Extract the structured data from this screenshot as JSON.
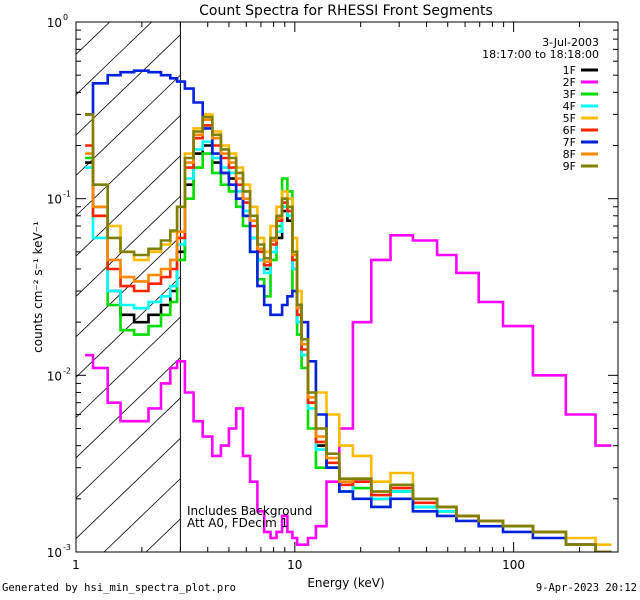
{
  "chart_data": {
    "type": "line",
    "title": "Count Spectra for RHESSI Front Segments",
    "xlabel": "Energy (keV)",
    "ylabel": "counts cm⁻² s⁻¹ keV⁻¹",
    "xscale": "log",
    "yscale": "log",
    "xlim": [
      1,
      300
    ],
    "ylim": [
      0.001,
      1
    ],
    "x_ticks": [
      {
        "value": 1,
        "label": "1"
      },
      {
        "value": 10,
        "label": "10"
      },
      {
        "value": 100,
        "label": "100"
      }
    ],
    "y_ticks": [
      {
        "value": 0.001,
        "base": "10",
        "exp": "-3"
      },
      {
        "value": 0.01,
        "base": "10",
        "exp": "-2"
      },
      {
        "value": 0.1,
        "base": "10",
        "exp": "-1"
      },
      {
        "value": 1,
        "base": "10",
        "exp": "0"
      }
    ],
    "date": "3-Jul-2003",
    "time_range": "18:17:00 to 18:18:00",
    "annotation_lines": [
      "Includes Background",
      "Att A0, FDecim 1"
    ],
    "hatched_region": {
      "x_from": 1,
      "x_to": 3
    },
    "series": [
      {
        "name": "1F",
        "color": "#000000",
        "x": [
          1.1,
          1.3,
          1.5,
          1.7,
          2.0,
          2.3,
          2.6,
          2.8,
          3.0,
          3.3,
          3.6,
          4.0,
          4.4,
          4.8,
          5.2,
          5.6,
          6.0,
          6.5,
          7.0,
          7.5,
          8.0,
          8.5,
          9.0,
          9.5,
          10.0,
          10.5,
          11,
          12,
          13,
          15,
          17,
          20,
          25,
          30,
          40,
          50,
          60,
          80,
          100,
          150,
          200,
          280
        ],
        "y": [
          0.16,
          0.09,
          0.03,
          0.022,
          0.02,
          0.022,
          0.025,
          0.03,
          0.05,
          0.12,
          0.18,
          0.2,
          0.16,
          0.14,
          0.13,
          0.1,
          0.08,
          0.06,
          0.045,
          0.04,
          0.05,
          0.06,
          0.085,
          0.075,
          0.04,
          0.02,
          0.013,
          0.007,
          0.004,
          0.003,
          0.0022,
          0.0025,
          0.002,
          0.0022,
          0.0018,
          0.0017,
          0.0016,
          0.0015,
          0.0014,
          0.0013,
          0.0011,
          0.001
        ]
      },
      {
        "name": "2F",
        "color": "#ff00ff",
        "x": [
          1.1,
          1.3,
          1.5,
          1.7,
          2.0,
          2.3,
          2.6,
          2.8,
          3.0,
          3.3,
          3.6,
          4.0,
          4.4,
          4.8,
          5.2,
          5.6,
          6.0,
          6.5,
          7.0,
          7.5,
          8.0,
          8.5,
          9.0,
          9.5,
          10.0,
          10.5,
          11,
          12,
          13,
          15,
          17,
          20,
          25,
          30,
          40,
          50,
          60,
          80,
          100,
          150,
          200,
          280
        ],
        "y": [
          0.013,
          0.011,
          0.007,
          0.0055,
          0.0055,
          0.0065,
          0.009,
          0.011,
          0.012,
          0.008,
          0.0055,
          0.0045,
          0.0035,
          0.004,
          0.005,
          0.0065,
          0.0035,
          0.0025,
          0.0017,
          0.0013,
          0.0012,
          0.0013,
          0.0016,
          0.0013,
          0.0012,
          0.0011,
          0.0011,
          0.0012,
          0.0014,
          0.0025,
          0.005,
          0.02,
          0.045,
          0.062,
          0.058,
          0.048,
          0.038,
          0.026,
          0.019,
          0.01,
          0.006,
          0.004
        ]
      },
      {
        "name": "3F",
        "color": "#00dd00",
        "x": [
          1.1,
          1.3,
          1.5,
          1.7,
          2.0,
          2.3,
          2.6,
          2.8,
          3.0,
          3.3,
          3.6,
          4.0,
          4.4,
          4.8,
          5.2,
          5.6,
          6.0,
          6.5,
          7.0,
          7.5,
          8.0,
          8.5,
          9.0,
          9.5,
          10.0,
          10.5,
          11,
          12,
          13,
          15,
          17,
          20,
          25,
          30,
          40,
          50,
          60,
          80,
          100,
          150,
          200,
          280
        ],
        "y": [
          0.17,
          0.08,
          0.025,
          0.018,
          0.017,
          0.019,
          0.022,
          0.026,
          0.045,
          0.1,
          0.15,
          0.18,
          0.14,
          0.12,
          0.11,
          0.09,
          0.07,
          0.05,
          0.035,
          0.028,
          0.045,
          0.07,
          0.13,
          0.11,
          0.03,
          0.017,
          0.011,
          0.005,
          0.003,
          0.003,
          0.0025,
          0.0023,
          0.002,
          0.0022,
          0.0018,
          0.0017,
          0.0016,
          0.0015,
          0.0014,
          0.0013,
          0.0011,
          0.001
        ]
      },
      {
        "name": "4F",
        "color": "#00ffff",
        "x": [
          1.1,
          1.3,
          1.5,
          1.7,
          2.0,
          2.3,
          2.6,
          2.8,
          3.0,
          3.3,
          3.6,
          4.0,
          4.4,
          4.8,
          5.2,
          5.6,
          6.0,
          6.5,
          7.0,
          7.5,
          8.0,
          8.5,
          9.0,
          9.5,
          10.0,
          10.5,
          11,
          12,
          13,
          15,
          17,
          20,
          25,
          30,
          40,
          50,
          60,
          80,
          100,
          150,
          200,
          280
        ],
        "y": [
          0.15,
          0.06,
          0.03,
          0.025,
          0.024,
          0.026,
          0.028,
          0.032,
          0.055,
          0.13,
          0.19,
          0.21,
          0.17,
          0.15,
          0.14,
          0.11,
          0.085,
          0.06,
          0.045,
          0.038,
          0.05,
          0.065,
          0.09,
          0.08,
          0.04,
          0.02,
          0.013,
          0.0065,
          0.0038,
          0.003,
          0.0022,
          0.0025,
          0.002,
          0.0022,
          0.0018,
          0.0017,
          0.0016,
          0.0015,
          0.0014,
          0.0013,
          0.0011,
          0.001
        ]
      },
      {
        "name": "5F",
        "color": "#ffbb00",
        "x": [
          1.1,
          1.3,
          1.5,
          1.7,
          2.0,
          2.3,
          2.6,
          2.8,
          3.0,
          3.3,
          3.6,
          4.0,
          4.4,
          4.8,
          5.2,
          5.6,
          6.0,
          6.5,
          7.0,
          7.5,
          8.0,
          8.5,
          9.0,
          9.5,
          10.0,
          10.5,
          11,
          12,
          13,
          15,
          17,
          20,
          25,
          30,
          40,
          50,
          60,
          80,
          100,
          150,
          200,
          280
        ],
        "y": [
          0.3,
          0.12,
          0.07,
          0.05,
          0.045,
          0.05,
          0.055,
          0.065,
          0.09,
          0.18,
          0.25,
          0.3,
          0.24,
          0.2,
          0.18,
          0.15,
          0.12,
          0.09,
          0.06,
          0.05,
          0.07,
          0.09,
          0.11,
          0.1,
          0.06,
          0.03,
          0.02,
          0.012,
          0.008,
          0.006,
          0.004,
          0.0035,
          0.0025,
          0.0028,
          0.002,
          0.0018,
          0.0016,
          0.0015,
          0.0014,
          0.0013,
          0.0012,
          0.0011
        ]
      },
      {
        "name": "6F",
        "color": "#ff2200",
        "x": [
          1.1,
          1.3,
          1.5,
          1.7,
          2.0,
          2.3,
          2.6,
          2.8,
          3.0,
          3.3,
          3.6,
          4.0,
          4.4,
          4.8,
          5.2,
          5.6,
          6.0,
          6.5,
          7.0,
          7.5,
          8.0,
          8.5,
          9.0,
          9.5,
          10.0,
          10.5,
          11,
          12,
          13,
          15,
          17,
          20,
          25,
          30,
          40,
          50,
          60,
          80,
          100,
          150,
          200,
          280
        ],
        "y": [
          0.2,
          0.08,
          0.04,
          0.032,
          0.03,
          0.033,
          0.036,
          0.04,
          0.06,
          0.15,
          0.22,
          0.26,
          0.2,
          0.17,
          0.15,
          0.12,
          0.095,
          0.07,
          0.05,
          0.042,
          0.055,
          0.075,
          0.095,
          0.085,
          0.045,
          0.022,
          0.014,
          0.007,
          0.0042,
          0.0032,
          0.0024,
          0.0025,
          0.0021,
          0.0023,
          0.0019,
          0.0018,
          0.0016,
          0.0015,
          0.0014,
          0.0013,
          0.0011,
          0.001
        ]
      },
      {
        "name": "7F",
        "color": "#0022dd",
        "x": [
          1.1,
          1.3,
          1.5,
          1.7,
          2.0,
          2.3,
          2.6,
          2.8,
          3.0,
          3.3,
          3.6,
          4.0,
          4.4,
          4.8,
          5.2,
          5.6,
          6.0,
          6.5,
          7.0,
          7.5,
          8.0,
          8.5,
          9.0,
          9.5,
          10.0,
          10.5,
          11,
          12,
          13,
          15,
          17,
          20,
          25,
          30,
          40,
          50,
          60,
          80,
          100,
          150,
          200,
          280
        ],
        "y": [
          0.3,
          0.45,
          0.5,
          0.52,
          0.53,
          0.52,
          0.5,
          0.48,
          0.46,
          0.42,
          0.35,
          0.25,
          0.18,
          0.14,
          0.12,
          0.1,
          0.08,
          0.05,
          0.032,
          0.025,
          0.022,
          0.022,
          0.025,
          0.028,
          0.03,
          0.025,
          0.02,
          0.012,
          0.006,
          0.003,
          0.0022,
          0.002,
          0.0018,
          0.002,
          0.0017,
          0.0016,
          0.0015,
          0.0014,
          0.0013,
          0.0012,
          0.0011,
          0.001
        ]
      },
      {
        "name": "8F",
        "color": "#ff8800",
        "x": [
          1.1,
          1.3,
          1.5,
          1.7,
          2.0,
          2.3,
          2.6,
          2.8,
          3.0,
          3.3,
          3.6,
          4.0,
          4.4,
          4.8,
          5.2,
          5.6,
          6.0,
          6.5,
          7.0,
          7.5,
          8.0,
          8.5,
          9.0,
          9.5,
          10.0,
          10.5,
          11,
          12,
          13,
          15,
          17,
          20,
          25,
          30,
          40,
          50,
          60,
          80,
          100,
          150,
          200,
          280
        ],
        "y": [
          0.18,
          0.09,
          0.045,
          0.036,
          0.034,
          0.037,
          0.04,
          0.045,
          0.065,
          0.16,
          0.23,
          0.28,
          0.22,
          0.18,
          0.16,
          0.13,
          0.1,
          0.075,
          0.052,
          0.044,
          0.058,
          0.078,
          0.1,
          0.09,
          0.048,
          0.024,
          0.015,
          0.0075,
          0.0045,
          0.0034,
          0.0025,
          0.0026,
          0.0022,
          0.0024,
          0.002,
          0.0018,
          0.0016,
          0.0015,
          0.0014,
          0.0013,
          0.0011,
          0.001
        ]
      },
      {
        "name": "9F",
        "color": "#808000",
        "x": [
          1.1,
          1.3,
          1.5,
          1.7,
          2.0,
          2.3,
          2.6,
          2.8,
          3.0,
          3.3,
          3.6,
          4.0,
          4.4,
          4.8,
          5.2,
          5.6,
          6.0,
          6.5,
          7.0,
          7.5,
          8.0,
          8.5,
          9.0,
          9.5,
          10.0,
          10.5,
          11,
          12,
          13,
          15,
          17,
          20,
          25,
          30,
          40,
          50,
          60,
          80,
          100,
          150,
          200,
          280
        ],
        "y": [
          0.3,
          0.12,
          0.06,
          0.05,
          0.048,
          0.052,
          0.058,
          0.066,
          0.09,
          0.17,
          0.24,
          0.29,
          0.23,
          0.19,
          0.17,
          0.14,
          0.11,
          0.08,
          0.055,
          0.046,
          0.06,
          0.08,
          0.1,
          0.09,
          0.05,
          0.025,
          0.016,
          0.008,
          0.005,
          0.0036,
          0.0026,
          0.0026,
          0.0022,
          0.0024,
          0.002,
          0.0018,
          0.0016,
          0.0015,
          0.0014,
          0.0013,
          0.0011,
          0.001
        ]
      }
    ]
  },
  "footer": {
    "left": "Generated by hsi_min_spectra_plot.pro",
    "right": "9-Apr-2023 20:12"
  }
}
